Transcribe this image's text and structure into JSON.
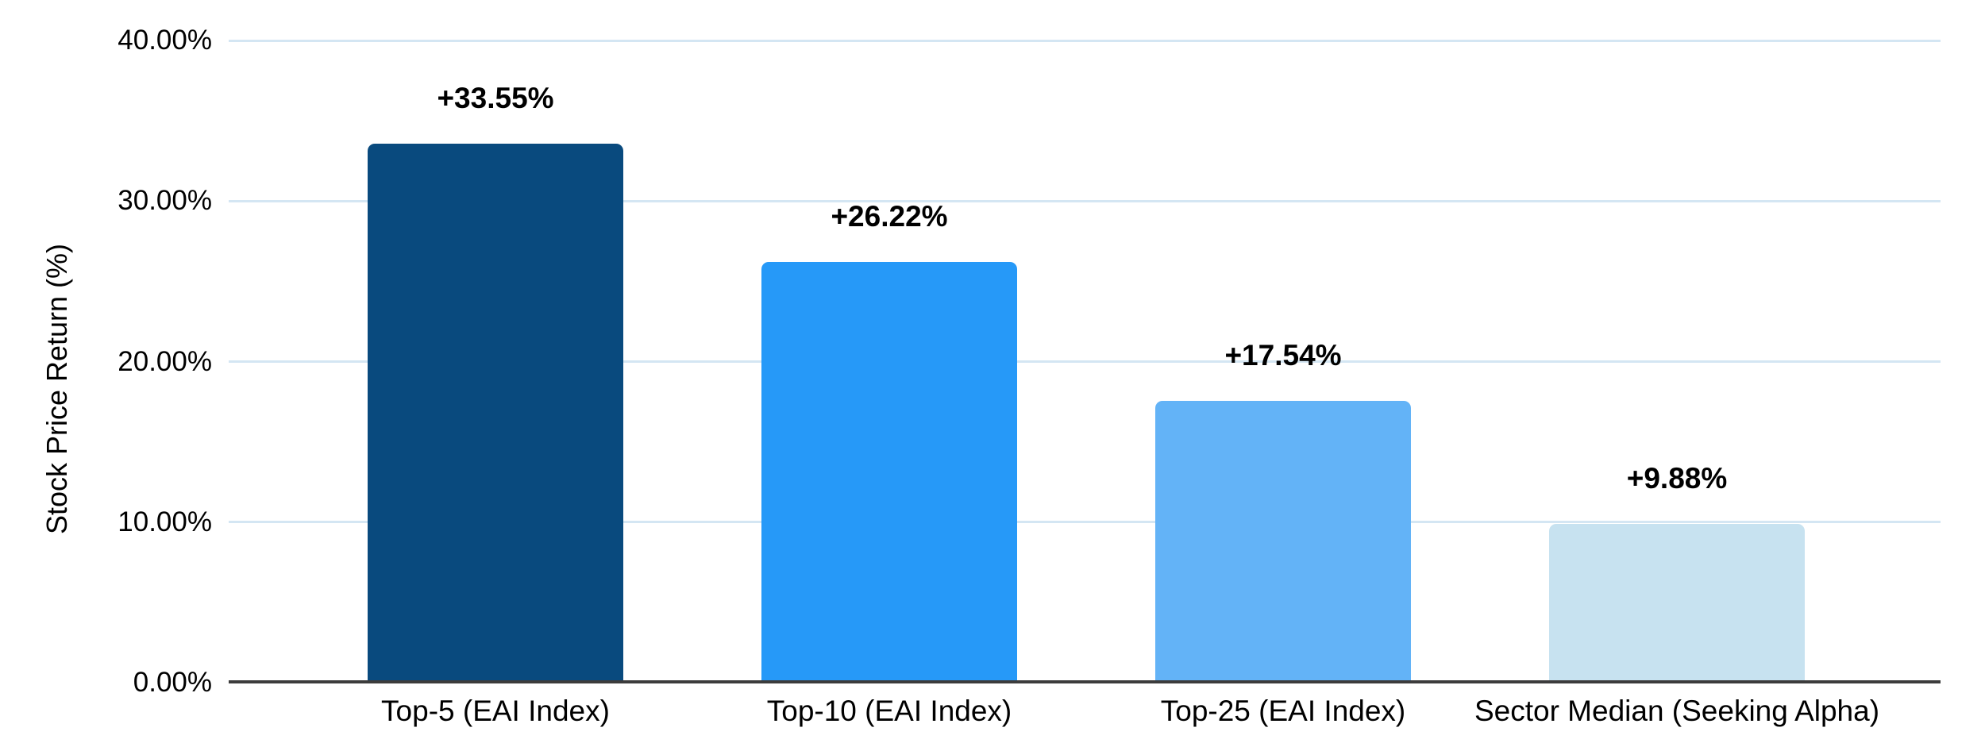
{
  "chart_data": {
    "type": "bar",
    "title": "",
    "xlabel": "",
    "ylabel": "Stock Price Return (%)",
    "categories": [
      "Top-5 (EAI Index)",
      "Top-10 (EAI Index)",
      "Top-25 (EAI Index)",
      "Sector Median (Seeking Alpha)"
    ],
    "values": [
      33.55,
      26.22,
      17.54,
      9.88
    ],
    "bar_labels": [
      "+33.55%",
      "+26.22%",
      "+17.54%",
      "+9.88%"
    ],
    "bar_colors": [
      "#094a7e",
      "#2699f8",
      "#63b3f7",
      "#c7e2f0"
    ],
    "ylim": [
      0,
      40
    ],
    "ytick_values": [
      0,
      10,
      20,
      30,
      40
    ],
    "ytick_labels": [
      "0.00%",
      "10.00%",
      "20.00%",
      "30.00%",
      "40.00%"
    ],
    "grid": true,
    "legend": "none",
    "colors": {
      "gridline": "#d4e6f3",
      "axis_line": "#3c3c3c",
      "label_text": "#000000",
      "background": "#ffffff"
    }
  }
}
